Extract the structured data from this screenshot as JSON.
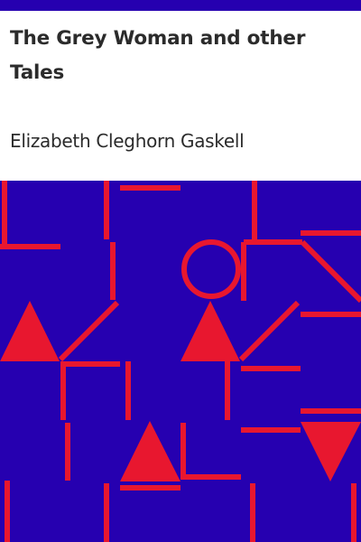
{
  "book": {
    "title": "The Grey Woman and other Tales",
    "author": "Elizabeth Cleghorn Gaskell"
  },
  "colors": {
    "background": "#ffffff",
    "accent_bar": "#2600b0",
    "pattern_background": "#2600b0",
    "pattern_foreground": "#e8172f",
    "text": "#2b2b2b"
  }
}
